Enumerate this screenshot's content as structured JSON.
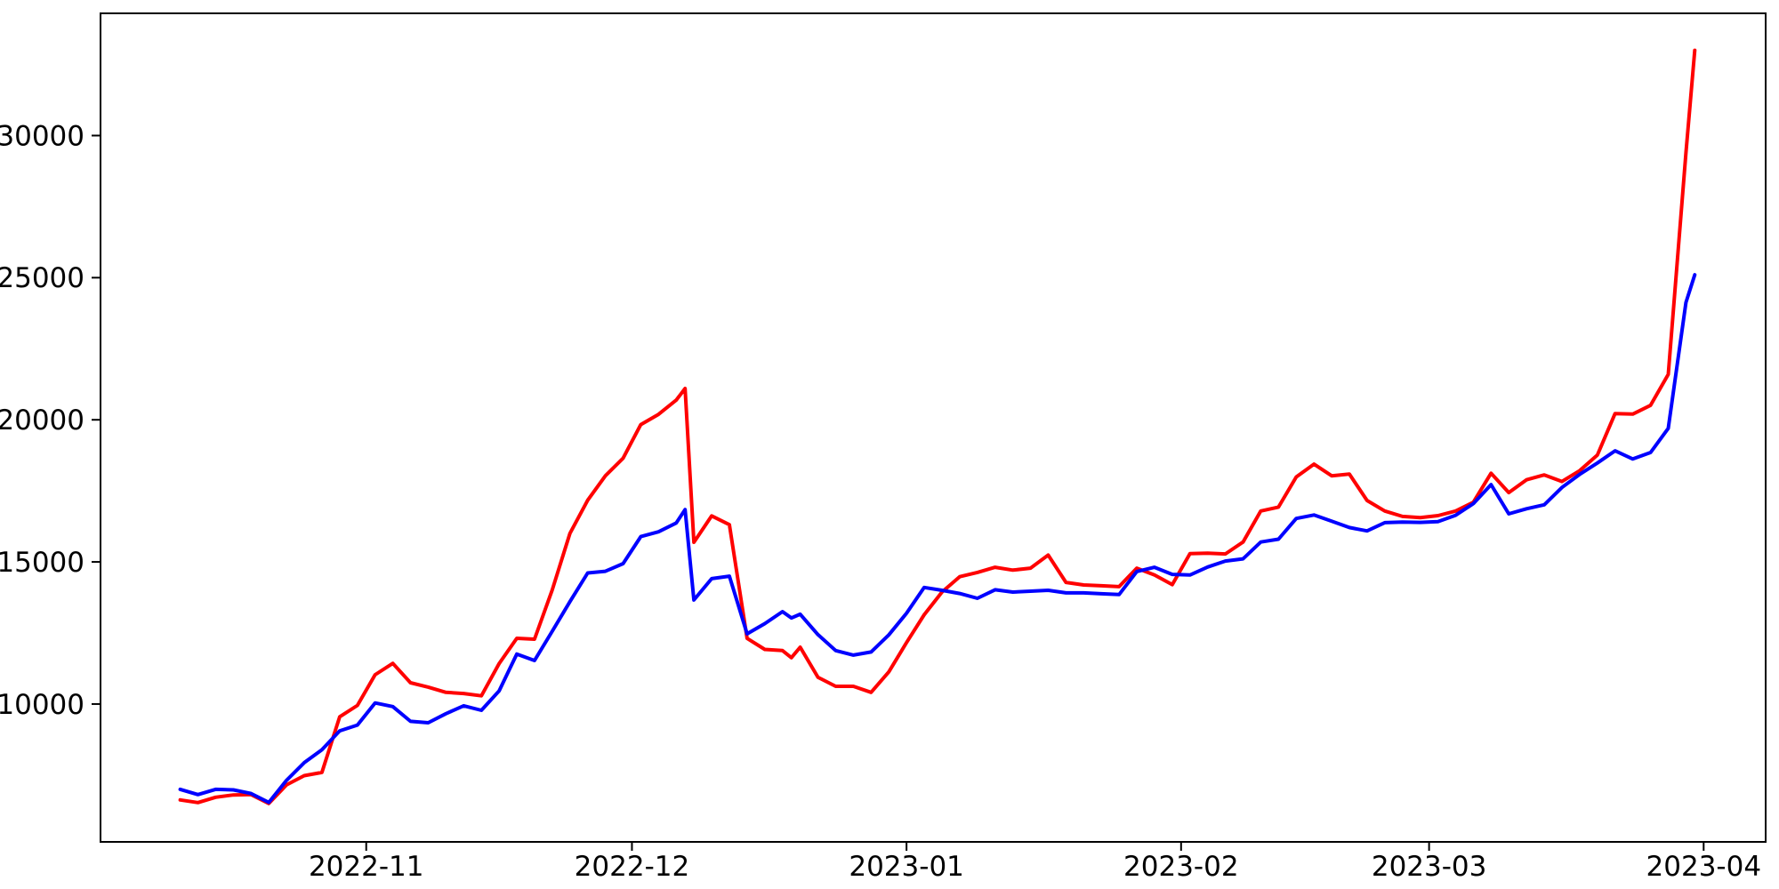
{
  "figure": {
    "background_color": "#ffffff",
    "axes_edge_color": "#000000",
    "tick_color": "#000000",
    "tick_label_font_px": 31
  },
  "chart_data": {
    "type": "line",
    "title": "",
    "xlabel": "",
    "ylabel": "",
    "grid": false,
    "legend_position": "none",
    "x_axis": {
      "tick_labels": [
        "2022-11",
        "2022-12",
        "2023-01",
        "2023-02",
        "2023-03",
        "2023-04"
      ],
      "tick_dates": [
        "2022-11-01",
        "2022-12-01",
        "2023-01-01",
        "2023-02-01",
        "2023-03-01",
        "2023-04-01"
      ],
      "xlim_dates": [
        "2022-10-02",
        "2023-04-08"
      ]
    },
    "y_axis": {
      "tick_labels": [
        "10000",
        "15000",
        "20000",
        "25000",
        "30000"
      ],
      "tick_values": [
        10000,
        15000,
        20000,
        25000,
        30000
      ],
      "ylim": [
        5150,
        34300
      ]
    },
    "dates": [
      "2022-10-11",
      "2022-10-13",
      "2022-10-15",
      "2022-10-17",
      "2022-10-19",
      "2022-10-21",
      "2022-10-23",
      "2022-10-25",
      "2022-10-27",
      "2022-10-29",
      "2022-10-31",
      "2022-11-02",
      "2022-11-04",
      "2022-11-06",
      "2022-11-08",
      "2022-11-10",
      "2022-11-12",
      "2022-11-14",
      "2022-11-16",
      "2022-11-18",
      "2022-11-20",
      "2022-11-22",
      "2022-11-24",
      "2022-11-26",
      "2022-11-28",
      "2022-11-30",
      "2022-12-02",
      "2022-12-04",
      "2022-12-06",
      "2022-12-07",
      "2022-12-08",
      "2022-12-10",
      "2022-12-12",
      "2022-12-14",
      "2022-12-16",
      "2022-12-18",
      "2022-12-19",
      "2022-12-20",
      "2022-12-22",
      "2022-12-24",
      "2022-12-26",
      "2022-12-28",
      "2022-12-30",
      "2023-01-01",
      "2023-01-03",
      "2023-01-05",
      "2023-01-07",
      "2023-01-09",
      "2023-01-11",
      "2023-01-13",
      "2023-01-15",
      "2023-01-17",
      "2023-01-19",
      "2023-01-21",
      "2023-01-23",
      "2023-01-25",
      "2023-01-27",
      "2023-01-29",
      "2023-01-31",
      "2023-02-02",
      "2023-02-04",
      "2023-02-06",
      "2023-02-08",
      "2023-02-10",
      "2023-02-12",
      "2023-02-14",
      "2023-02-16",
      "2023-02-18",
      "2023-02-20",
      "2023-02-22",
      "2023-02-24",
      "2023-02-26",
      "2023-02-28",
      "2023-03-02",
      "2023-03-04",
      "2023-03-06",
      "2023-03-08",
      "2023-03-10",
      "2023-03-12",
      "2023-03-14",
      "2023-03-16",
      "2023-03-18",
      "2023-03-20",
      "2023-03-22",
      "2023-03-24",
      "2023-03-26",
      "2023-03-28",
      "2023-03-30",
      "2023-03-31"
    ],
    "series": [
      {
        "name": "red-series",
        "color": "#ff0000",
        "line_width": 4,
        "values": [
          6625,
          6531,
          6719,
          6800,
          6813,
          6500,
          7156,
          7480,
          7594,
          9550,
          9950,
          11030,
          11430,
          10750,
          10594,
          10410,
          10370,
          10290,
          11420,
          12313,
          12281,
          14010,
          16000,
          17170,
          18030,
          18650,
          19830,
          20190,
          20690,
          21100,
          15690,
          16620,
          16310,
          12310,
          11920,
          11880,
          11630,
          12000,
          10940,
          10625,
          10625,
          10410,
          11130,
          12160,
          13140,
          13940,
          14480,
          14630,
          14810,
          14710,
          14780,
          15240,
          14280,
          14190,
          14160,
          14130,
          14780,
          14540,
          14200,
          15290,
          15310,
          15280,
          15700,
          16790,
          16930,
          17990,
          18440,
          18030,
          18090,
          17160,
          16790,
          16600,
          16560,
          16630,
          16790,
          17100,
          18120,
          17440,
          17890,
          18060,
          17830,
          18210,
          18760,
          20220,
          20200,
          20510,
          21600,
          29400,
          33000
        ]
      },
      {
        "name": "blue-series",
        "color": "#0000ff",
        "line_width": 4,
        "values": [
          7000,
          6813,
          7000,
          6980,
          6850,
          6540,
          7313,
          7938,
          8390,
          9055,
          9260,
          10040,
          9910,
          9390,
          9340,
          9660,
          9940,
          9780,
          10460,
          11760,
          11530,
          12560,
          13600,
          14610,
          14670,
          14940,
          15890,
          16060,
          16370,
          16840,
          13660,
          14410,
          14500,
          12470,
          12830,
          13250,
          13030,
          13160,
          12440,
          11880,
          11720,
          11830,
          12430,
          13190,
          14100,
          14000,
          13890,
          13720,
          14020,
          13940,
          13970,
          14000,
          13910,
          13910,
          13880,
          13850,
          14660,
          14810,
          14560,
          14540,
          14820,
          15030,
          15110,
          15700,
          15800,
          16530,
          16650,
          16430,
          16210,
          16090,
          16380,
          16400,
          16390,
          16420,
          16640,
          17050,
          17720,
          16690,
          16870,
          17010,
          17620,
          18080,
          18480,
          18910,
          18620,
          18850,
          19700,
          24130,
          25100
        ]
      }
    ]
  }
}
